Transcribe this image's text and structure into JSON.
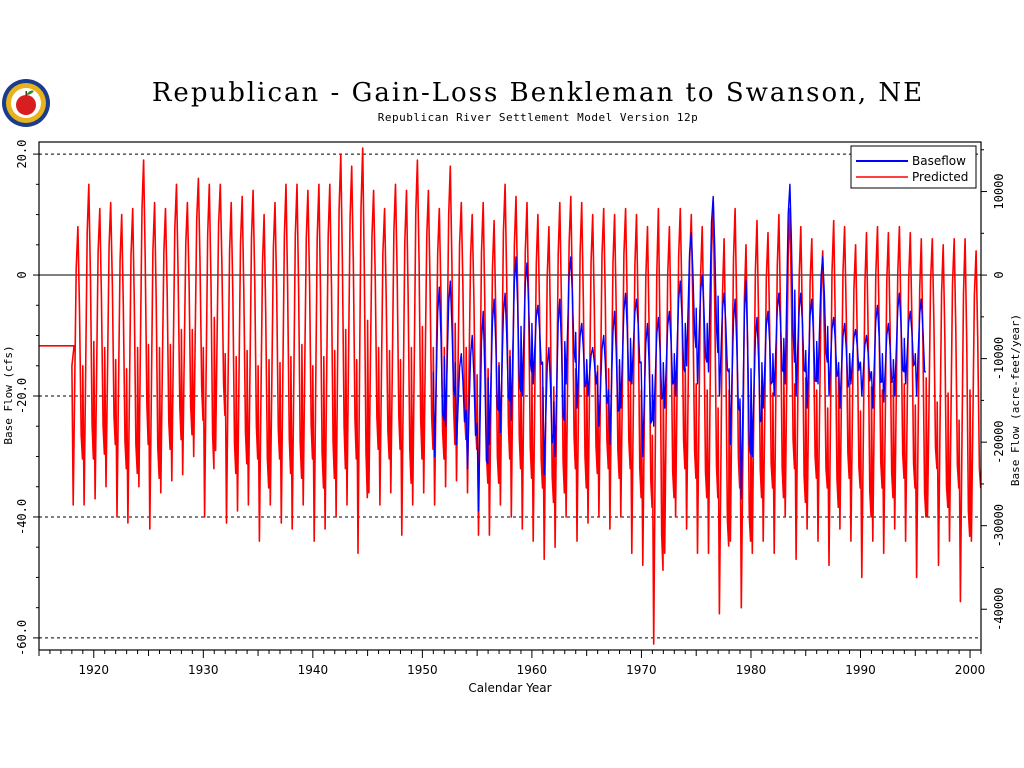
{
  "title": "Republican - Gain-Loss Benkleman to Swanson, NE",
  "subtitle": "Republican River Settlement Model Version 12p",
  "chart_data": {
    "type": "line",
    "xlabel": "Calendar Year",
    "ylabel": "Base Flow (cfs)",
    "y2label": "Base Flow (acre-feet/year)",
    "xlim": [
      1915,
      2001
    ],
    "ylim": [
      -62,
      22
    ],
    "y2lim": [
      -44880,
      15930
    ],
    "x_ticks": [
      1920,
      1930,
      1940,
      1950,
      1960,
      1970,
      1980,
      1990,
      2000
    ],
    "y_ticks": [
      {
        "value": 20,
        "label": "20.0"
      },
      {
        "value": 0,
        "label": "0"
      },
      {
        "value": -20,
        "label": "-20.0"
      },
      {
        "value": -40,
        "label": "-40.0"
      },
      {
        "value": -60,
        "label": "-60.0"
      }
    ],
    "y2_ticks": [
      {
        "value": 10000,
        "label": "10000"
      },
      {
        "value": 0,
        "label": "0"
      },
      {
        "value": -10000,
        "label": "-10000"
      },
      {
        "value": -20000,
        "label": "-20000"
      },
      {
        "value": -30000,
        "label": "-30000"
      },
      {
        "value": -40000,
        "label": "-40000"
      }
    ],
    "gridlines_y": [
      20,
      -20,
      -40,
      -60
    ],
    "zero_line": 0,
    "legend_position": "top-right",
    "series": [
      {
        "name": "Baseflow",
        "color": "#0000ff",
        "note_start_year": 1951,
        "pattern": "annual oscillation",
        "annual_peaks": [
          [
            1951,
            -2
          ],
          [
            1952,
            -1
          ],
          [
            1953,
            -13
          ],
          [
            1954,
            -10
          ],
          [
            1955,
            -6
          ],
          [
            1956,
            -4
          ],
          [
            1957,
            -3
          ],
          [
            1958,
            3
          ],
          [
            1959,
            2
          ],
          [
            1960,
            -5
          ],
          [
            1961,
            -12
          ],
          [
            1962,
            -4
          ],
          [
            1963,
            3
          ],
          [
            1964,
            -8
          ],
          [
            1965,
            -12
          ],
          [
            1966,
            -10
          ],
          [
            1967,
            -6
          ],
          [
            1968,
            -3
          ],
          [
            1969,
            -4
          ],
          [
            1970,
            -8
          ],
          [
            1971,
            -7
          ],
          [
            1972,
            -6
          ],
          [
            1973,
            -1
          ],
          [
            1974,
            7
          ],
          [
            1975,
            0
          ],
          [
            1976,
            13
          ],
          [
            1977,
            -3
          ],
          [
            1978,
            -4
          ],
          [
            1979,
            -1
          ],
          [
            1980,
            -7
          ],
          [
            1981,
            -6
          ],
          [
            1982,
            -3
          ],
          [
            1983,
            15
          ],
          [
            1984,
            -3
          ],
          [
            1985,
            -4
          ],
          [
            1986,
            3
          ],
          [
            1987,
            -7
          ],
          [
            1988,
            -8
          ],
          [
            1989,
            -9
          ],
          [
            1990,
            -10
          ],
          [
            1991,
            -5
          ],
          [
            1992,
            -8
          ],
          [
            1993,
            -3
          ],
          [
            1994,
            -6
          ],
          [
            1995,
            -4
          ]
        ],
        "annual_troughs": [
          [
            1951,
            -30
          ],
          [
            1952,
            -25
          ],
          [
            1953,
            -28
          ],
          [
            1954,
            -32
          ],
          [
            1955,
            -39
          ],
          [
            1956,
            -28
          ],
          [
            1957,
            -26
          ],
          [
            1958,
            -24
          ],
          [
            1959,
            -20
          ],
          [
            1960,
            -18
          ],
          [
            1961,
            -33
          ],
          [
            1962,
            -30
          ],
          [
            1963,
            -18
          ],
          [
            1964,
            -22
          ],
          [
            1965,
            -20
          ],
          [
            1966,
            -25
          ],
          [
            1967,
            -28
          ],
          [
            1968,
            -22
          ],
          [
            1969,
            -18
          ],
          [
            1970,
            -30
          ],
          [
            1971,
            -25
          ],
          [
            1972,
            -22
          ],
          [
            1973,
            -20
          ],
          [
            1974,
            -15
          ],
          [
            1975,
            -18
          ],
          [
            1976,
            -16
          ],
          [
            1977,
            -20
          ],
          [
            1978,
            -28
          ],
          [
            1979,
            -37
          ],
          [
            1980,
            -30
          ],
          [
            1981,
            -22
          ],
          [
            1982,
            -20
          ],
          [
            1983,
            -18
          ],
          [
            1984,
            -20
          ],
          [
            1985,
            -22
          ],
          [
            1986,
            -18
          ],
          [
            1987,
            -20
          ],
          [
            1988,
            -22
          ],
          [
            1989,
            -18
          ],
          [
            1990,
            -20
          ],
          [
            1991,
            -22
          ],
          [
            1992,
            -21
          ],
          [
            1993,
            -20
          ],
          [
            1994,
            -18
          ],
          [
            1995,
            -20
          ]
        ]
      },
      {
        "name": "Predicted",
        "color": "#ff0000",
        "initial_flat": {
          "from": 1915,
          "to": 1918.2,
          "value": -11.7
        },
        "pattern": "annual oscillation",
        "annual_peaks": [
          [
            1918,
            8
          ],
          [
            1919,
            15
          ],
          [
            1920,
            11
          ],
          [
            1921,
            12
          ],
          [
            1922,
            10
          ],
          [
            1923,
            11
          ],
          [
            1924,
            19
          ],
          [
            1925,
            12
          ],
          [
            1926,
            11
          ],
          [
            1927,
            15
          ],
          [
            1928,
            12
          ],
          [
            1929,
            16
          ],
          [
            1930,
            15
          ],
          [
            1931,
            15
          ],
          [
            1932,
            12
          ],
          [
            1933,
            13
          ],
          [
            1934,
            14
          ],
          [
            1935,
            10
          ],
          [
            1936,
            12
          ],
          [
            1937,
            15
          ],
          [
            1938,
            15
          ],
          [
            1939,
            14
          ],
          [
            1940,
            15
          ],
          [
            1941,
            15
          ],
          [
            1942,
            20
          ],
          [
            1943,
            18
          ],
          [
            1944,
            21
          ],
          [
            1945,
            14
          ],
          [
            1946,
            11
          ],
          [
            1947,
            15
          ],
          [
            1948,
            14
          ],
          [
            1949,
            19
          ],
          [
            1950,
            14
          ],
          [
            1951,
            11
          ],
          [
            1952,
            18
          ],
          [
            1953,
            12
          ],
          [
            1954,
            10
          ],
          [
            1955,
            12
          ],
          [
            1956,
            9
          ],
          [
            1957,
            15
          ],
          [
            1958,
            13
          ],
          [
            1959,
            12
          ],
          [
            1960,
            10
          ],
          [
            1961,
            8
          ],
          [
            1962,
            12
          ],
          [
            1963,
            13
          ],
          [
            1964,
            12
          ],
          [
            1965,
            10
          ],
          [
            1966,
            11
          ],
          [
            1967,
            10
          ],
          [
            1968,
            11
          ],
          [
            1969,
            10
          ],
          [
            1970,
            8
          ],
          [
            1971,
            11
          ],
          [
            1972,
            8
          ],
          [
            1973,
            11
          ],
          [
            1974,
            10
          ],
          [
            1975,
            8
          ],
          [
            1976,
            12
          ],
          [
            1977,
            6
          ],
          [
            1978,
            11
          ],
          [
            1979,
            5
          ],
          [
            1980,
            9
          ],
          [
            1981,
            7
          ],
          [
            1982,
            10
          ],
          [
            1983,
            11
          ],
          [
            1984,
            8
          ],
          [
            1985,
            6
          ],
          [
            1986,
            4
          ],
          [
            1987,
            9
          ],
          [
            1988,
            8
          ],
          [
            1989,
            5
          ],
          [
            1990,
            7
          ],
          [
            1991,
            8
          ],
          [
            1992,
            7
          ],
          [
            1993,
            8
          ],
          [
            1994,
            7
          ],
          [
            1995,
            6
          ],
          [
            1996,
            6
          ],
          [
            1997,
            5
          ],
          [
            1998,
            6
          ],
          [
            1999,
            6
          ],
          [
            2000,
            4
          ]
        ],
        "annual_troughs": [
          [
            1918,
            -38
          ],
          [
            1919,
            -38
          ],
          [
            1920,
            -37
          ],
          [
            1921,
            -35
          ],
          [
            1922,
            -40
          ],
          [
            1923,
            -41
          ],
          [
            1924,
            -35
          ],
          [
            1925,
            -42
          ],
          [
            1926,
            -36
          ],
          [
            1927,
            -34
          ],
          [
            1928,
            -33
          ],
          [
            1929,
            -30
          ],
          [
            1930,
            -40
          ],
          [
            1931,
            -29
          ],
          [
            1932,
            -41
          ],
          [
            1933,
            -39
          ],
          [
            1934,
            -38
          ],
          [
            1935,
            -44
          ],
          [
            1936,
            -38
          ],
          [
            1937,
            -41
          ],
          [
            1938,
            -42
          ],
          [
            1939,
            -38
          ],
          [
            1940,
            -44
          ],
          [
            1941,
            -42
          ],
          [
            1942,
            -40
          ],
          [
            1943,
            -38
          ],
          [
            1944,
            -46
          ],
          [
            1945,
            -36
          ],
          [
            1946,
            -38
          ],
          [
            1947,
            -36
          ],
          [
            1948,
            -43
          ],
          [
            1949,
            -38
          ],
          [
            1950,
            -36
          ],
          [
            1951,
            -38
          ],
          [
            1952,
            -35
          ],
          [
            1953,
            -34
          ],
          [
            1954,
            -36
          ],
          [
            1955,
            -43
          ],
          [
            1956,
            -43
          ],
          [
            1957,
            -38
          ],
          [
            1958,
            -40
          ],
          [
            1959,
            -42
          ],
          [
            1960,
            -44
          ],
          [
            1961,
            -47
          ],
          [
            1962,
            -45
          ],
          [
            1963,
            -40
          ],
          [
            1964,
            -44
          ],
          [
            1965,
            -41
          ],
          [
            1966,
            -40
          ],
          [
            1967,
            -42
          ],
          [
            1968,
            -40
          ],
          [
            1969,
            -46
          ],
          [
            1970,
            -48
          ],
          [
            1971,
            -61
          ],
          [
            1972,
            -46
          ],
          [
            1973,
            -40
          ],
          [
            1974,
            -42
          ],
          [
            1975,
            -46
          ],
          [
            1976,
            -46
          ],
          [
            1977,
            -56
          ],
          [
            1978,
            -44
          ],
          [
            1979,
            -55
          ],
          [
            1980,
            -46
          ],
          [
            1981,
            -44
          ],
          [
            1982,
            -46
          ],
          [
            1983,
            -40
          ],
          [
            1984,
            -47
          ],
          [
            1985,
            -42
          ],
          [
            1986,
            -44
          ],
          [
            1987,
            -48
          ],
          [
            1988,
            -42
          ],
          [
            1989,
            -44
          ],
          [
            1990,
            -50
          ],
          [
            1991,
            -44
          ],
          [
            1992,
            -46
          ],
          [
            1993,
            -42
          ],
          [
            1994,
            -44
          ],
          [
            1995,
            -50
          ],
          [
            1996,
            -40
          ],
          [
            1997,
            -48
          ],
          [
            1998,
            -44
          ],
          [
            1999,
            -54
          ],
          [
            2000,
            -44
          ]
        ]
      }
    ]
  }
}
